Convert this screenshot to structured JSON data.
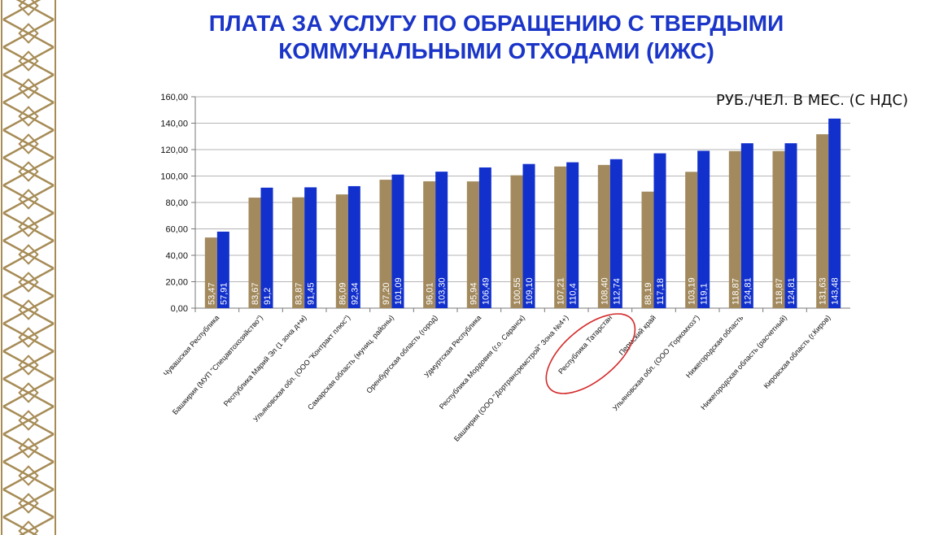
{
  "page": {
    "title_line1": "ПЛАТА ЗА УСЛУГУ ПО ОБРАЩЕНИЮ С ТВЕРДЫМИ",
    "title_line2": "КОММУНАЛЬНЫМИ ОТХОДАМИ (ИЖС)",
    "unit_label": "РУБ./ЧЕЛ. В МЕС. (С НДС)"
  },
  "colors": {
    "series1": "#a38a5e",
    "series2": "#1130cc",
    "title": "#1a35c8",
    "highlight": "#d42a2a",
    "ornament": "#a68b55"
  },
  "chart_data": {
    "type": "bar",
    "title": "",
    "xlabel": "",
    "ylabel": "",
    "ylim": [
      0,
      160
    ],
    "yticks": [
      "0,00",
      "20,00",
      "40,00",
      "60,00",
      "80,00",
      "100,00",
      "120,00",
      "140,00",
      "160,00"
    ],
    "grid": true,
    "categories": [
      "Чувашская Республика",
      "Башкирия (МУП \"Спецавтохозяйство\")",
      "Республика Марий Эл (1 зона д+м)",
      "Ульяновская обл. (ООО \"Контракт плюс\")",
      "Самарская область (муниц. районы)",
      "Оренбургская область (город)",
      "Удмуртская Республика",
      "Республика Мордовия (г.о. Саранск)",
      "Башкирия (ООО \"Дортрансремстрой\" Зона №4+)",
      "Республика Татарстан",
      "Пермский край",
      "Ульяновская обл. (ООО \"Горкомхоз\")",
      "Нижегородская  область",
      "Нижегородская  область (расчетный)",
      "Кировская область (г.Киров)"
    ],
    "series": [
      {
        "values": [
          53.47,
          83.67,
          83.87,
          86.09,
          97.2,
          96.01,
          95.94,
          100.55,
          107.21,
          108.4,
          88.19,
          103.19,
          118.87,
          118.87,
          131.63
        ],
        "labels": [
          "53,47",
          "83,67",
          "83,87",
          "86,09",
          "97,20",
          "96,01",
          "95,94",
          "100,55",
          "107,21",
          "108,40",
          "88,19",
          "103,19",
          "118,87",
          "118,87",
          "131,63"
        ]
      },
      {
        "values": [
          57.91,
          91.2,
          91.45,
          92.34,
          101.09,
          103.3,
          106.49,
          109.1,
          110.4,
          112.74,
          117.18,
          119.1,
          124.81,
          124.81,
          143.48
        ],
        "labels": [
          "57,91",
          "91,2",
          "91,45",
          "92,34",
          "101,09",
          "103,30",
          "106,49",
          "109,10",
          "110,4",
          "112,74",
          "117,18",
          "119,1",
          "124,81",
          "124,81",
          "143,48"
        ]
      }
    ],
    "highlighted_category": "Республика Татарстан"
  }
}
